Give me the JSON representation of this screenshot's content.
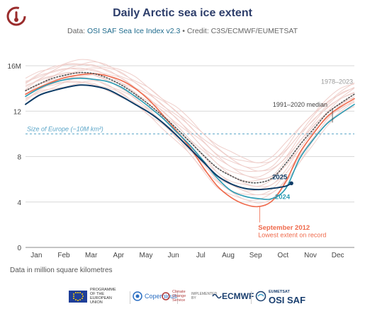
{
  "header": {
    "title": "Daily Arctic sea ice extent",
    "subtitle_prefix": "Data: ",
    "subtitle_source": "OSI SAF Sea Ice Index v2.3",
    "subtitle_suffix": " • Credit: C3S/ECMWF/EUMETSAT"
  },
  "footnote": "Data in million square kilometres",
  "footer": {
    "eu_text": "PROGRAMME OF THE EUROPEAN UNION",
    "copernicus": "Copernicus",
    "climate_text": "Climate Change Service",
    "implemented_by": "IMPLEMENTED BY",
    "ecmwf": "ECMWF",
    "eumetsat": "EUMETSAT",
    "osisaf": "OSI SAF"
  },
  "colors": {
    "y2025": "#0d3b66",
    "y2024": "#2a9bb3",
    "y2012": "#ef6a4c",
    "median": "#555555",
    "history": "#efcfcb",
    "europe": "#5aa5c8",
    "grid": "#d8d8d8"
  },
  "chart_data": {
    "type": "line",
    "title": "Daily Arctic sea ice extent",
    "ylabel": "Data in million square kilometres",
    "ylim": [
      0,
      16
    ],
    "yticks": [
      0,
      4,
      8,
      12,
      16
    ],
    "ytick_labels": [
      "0",
      "4",
      "8",
      "12",
      "16M"
    ],
    "xlim": [
      0,
      12
    ],
    "xticks": [
      0.5,
      1.5,
      2.5,
      3.5,
      4.5,
      5.5,
      6.5,
      7.5,
      8.5,
      9.5,
      10.5,
      11.5
    ],
    "xtick_labels": [
      "Jan",
      "Feb",
      "Mar",
      "Apr",
      "May",
      "Jun",
      "Jul",
      "Aug",
      "Sep",
      "Oct",
      "Nov",
      "Dec"
    ],
    "grid": true,
    "reference_line": {
      "value": 10,
      "label": "Size of Europe (~10M km²)"
    },
    "annotations": [
      {
        "text": "1978–2023",
        "series": "1978-2023"
      },
      {
        "text": "1991–2020 median",
        "series": "median"
      },
      {
        "text": "2025",
        "series": "2025"
      },
      {
        "text": "2024",
        "series": "2024"
      },
      {
        "text": "September 2012",
        "series": "2012"
      },
      {
        "text": "Lowest extent on record",
        "series": "2012"
      }
    ],
    "series": [
      {
        "name": "1991–2020 median",
        "x": [
          0,
          0.5,
          1,
          1.5,
          2,
          2.5,
          3,
          3.5,
          4,
          4.5,
          5,
          5.5,
          6,
          6.5,
          7,
          7.5,
          8,
          8.5,
          9,
          9.5,
          10,
          10.5,
          11,
          11.5,
          12
        ],
        "y": [
          13.8,
          14.4,
          14.9,
          15.2,
          15.4,
          15.3,
          14.9,
          14.3,
          13.5,
          12.6,
          11.6,
          10.5,
          9.3,
          8.1,
          7.0,
          6.3,
          5.8,
          5.7,
          6.1,
          7.4,
          9.0,
          10.4,
          11.8,
          12.7,
          13.5
        ]
      },
      {
        "name": "2025",
        "x": [
          0,
          0.5,
          1,
          1.5,
          2,
          2.5,
          3,
          3.5,
          4,
          4.5,
          5,
          5.5,
          6,
          6.5,
          7,
          7.5,
          8,
          8.5,
          9,
          9.5,
          9.7
        ],
        "y": [
          12.6,
          13.4,
          13.8,
          14.1,
          14.3,
          14.2,
          13.9,
          13.3,
          12.6,
          11.9,
          11.0,
          9.9,
          8.7,
          7.5,
          6.3,
          5.6,
          5.2,
          5.1,
          5.2,
          5.4,
          5.65
        ]
      },
      {
        "name": "2024",
        "x": [
          0,
          0.5,
          1,
          1.5,
          2,
          2.5,
          3,
          3.5,
          4,
          4.5,
          5,
          5.5,
          6,
          6.5,
          7,
          7.5,
          8,
          8.5,
          9,
          9.5,
          10,
          10.5,
          11,
          11.5,
          12
        ],
        "y": [
          13.3,
          14.0,
          14.5,
          14.8,
          14.9,
          14.8,
          14.6,
          14.1,
          13.3,
          12.4,
          11.4,
          10.2,
          9.0,
          7.6,
          6.1,
          5.0,
          4.5,
          4.3,
          4.3,
          5.2,
          7.8,
          9.5,
          10.9,
          11.8,
          12.6
        ]
      },
      {
        "name": "2012",
        "x": [
          0,
          0.5,
          1,
          1.5,
          2,
          2.5,
          3,
          3.5,
          4,
          4.5,
          5,
          5.5,
          6,
          6.5,
          7,
          7.5,
          8,
          8.5,
          9,
          9.5,
          10,
          10.5,
          11,
          11.5,
          12
        ],
        "y": [
          13.5,
          14.1,
          14.6,
          15.0,
          15.2,
          15.3,
          15.1,
          14.7,
          14.0,
          13.0,
          11.7,
          10.3,
          8.8,
          7.0,
          5.4,
          4.4,
          3.8,
          3.6,
          4.1,
          5.8,
          8.3,
          10.0,
          11.5,
          12.4,
          13.1
        ]
      },
      {
        "name": "1978–2023",
        "band": true,
        "x": [
          0,
          0.5,
          1,
          1.5,
          2,
          2.5,
          3,
          3.5,
          4,
          4.5,
          5,
          5.5,
          6,
          6.5,
          7,
          7.5,
          8,
          8.5,
          9,
          9.5,
          10,
          10.5,
          11,
          11.5,
          12
        ],
        "y_low": [
          12.9,
          13.6,
          14.0,
          14.3,
          14.4,
          14.3,
          13.9,
          13.3,
          12.5,
          11.6,
          10.6,
          9.4,
          8.1,
          6.7,
          5.4,
          4.6,
          4.1,
          4.0,
          4.4,
          5.6,
          7.4,
          9.2,
          10.7,
          11.7,
          12.4
        ],
        "y_high": [
          14.8,
          15.4,
          15.9,
          16.3,
          16.4,
          16.4,
          16.1,
          15.6,
          14.9,
          14.1,
          13.2,
          12.3,
          11.2,
          10.1,
          9.1,
          8.3,
          7.8,
          7.6,
          8.0,
          9.1,
          10.6,
          11.9,
          13.0,
          13.9,
          14.5
        ]
      }
    ]
  }
}
